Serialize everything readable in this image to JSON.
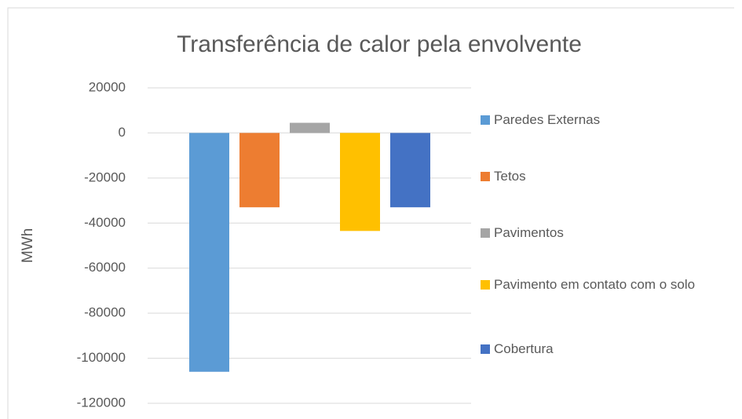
{
  "chart_data": {
    "type": "bar",
    "title": "Transferência de calor pela envolvente",
    "ylabel": "MWh",
    "categories": [
      null
    ],
    "series": [
      {
        "name": "Paredes Externas",
        "color": "#5b9bd5",
        "values": [
          -106000
        ]
      },
      {
        "name": "Tetos",
        "color": "#ed7d31",
        "values": [
          -33000
        ]
      },
      {
        "name": "Pavimentos",
        "color": "#a5a5a5",
        "values": [
          4500
        ]
      },
      {
        "name": "Pavimento em contato com o solo",
        "color": "#ffc000",
        "values": [
          -43500
        ]
      },
      {
        "name": "Cobertura",
        "color": "#4472c4",
        "values": [
          -33000
        ]
      }
    ],
    "ylim": [
      -120000,
      20000
    ],
    "yticks": [
      -120000,
      -100000,
      -80000,
      -60000,
      -40000,
      -20000,
      0,
      20000
    ],
    "grid": true,
    "legend": "right"
  }
}
